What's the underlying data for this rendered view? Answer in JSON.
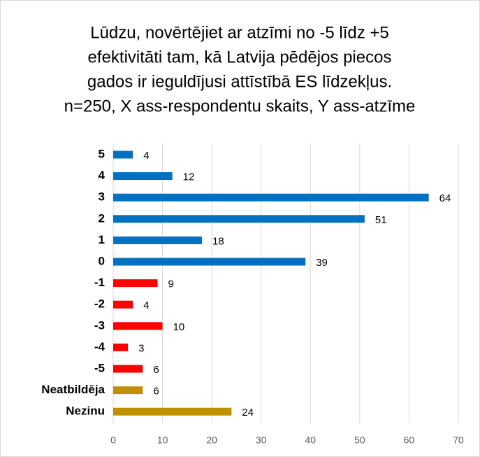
{
  "chart_data": {
    "type": "bar",
    "orientation": "horizontal",
    "title": [
      "Lūdzu, novērtējiet ar atzīmi no -5 līdz +5",
      "efektivitāti tam, kā Latvija pēdējos piecos",
      "gados ir ieguldījusi attīstībā ES līdzekļus.",
      "n=250, X ass-respondentu skaits, Y ass-atzīme"
    ],
    "categories": [
      "5",
      "4",
      "3",
      "2",
      "1",
      "0",
      "-1",
      "-2",
      "-3",
      "-4",
      "-5",
      "Neatbildēja",
      "Nezinu"
    ],
    "values": [
      4,
      12,
      64,
      51,
      18,
      39,
      9,
      4,
      10,
      3,
      6,
      6,
      24
    ],
    "colors": [
      "#0070c0",
      "#0070c0",
      "#0070c0",
      "#0070c0",
      "#0070c0",
      "#0070c0",
      "#ff0000",
      "#ff0000",
      "#ff0000",
      "#ff0000",
      "#ff0000",
      "#bf9000",
      "#bf9000"
    ],
    "xlim": [
      0,
      70
    ],
    "xticks": [
      0,
      10,
      20,
      30,
      40,
      50,
      60,
      70
    ],
    "grid": true
  }
}
